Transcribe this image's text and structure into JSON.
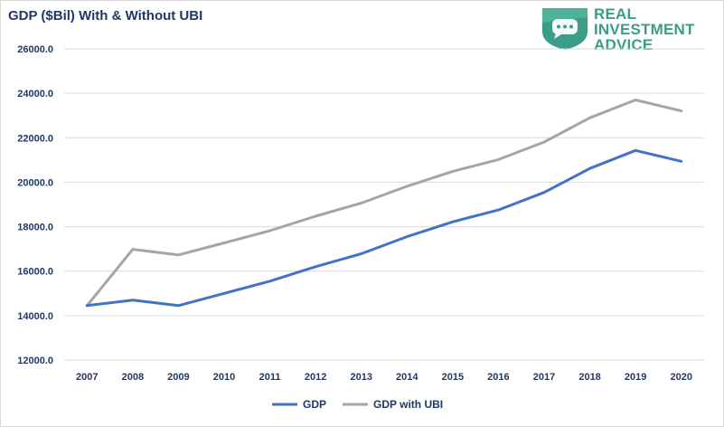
{
  "chart_data": {
    "type": "line",
    "title": "GDP ($Bil) With & Without UBI",
    "x": [
      "2007",
      "2008",
      "2009",
      "2010",
      "2011",
      "2012",
      "2013",
      "2014",
      "2015",
      "2016",
      "2017",
      "2018",
      "2019",
      "2020"
    ],
    "ylim": [
      12000,
      26000
    ],
    "yticks": [
      12000,
      14000,
      16000,
      18000,
      20000,
      22000,
      24000,
      26000
    ],
    "ytick_labels": [
      "12000.0",
      "14000.0",
      "16000.0",
      "18000.0",
      "20000.0",
      "22000.0",
      "24000.0",
      "26000.0"
    ],
    "grid": true,
    "legend_position": "bottom",
    "series": [
      {
        "name": "GDP",
        "color": "#4472c4",
        "values": [
          14450,
          14700,
          14450,
          15000,
          15550,
          16200,
          16780,
          17550,
          18220,
          18750,
          19540,
          20620,
          21430,
          20940
        ]
      },
      {
        "name": "GDP with UBI",
        "color": "#a5a5a5",
        "values": [
          14450,
          16980,
          16730,
          17270,
          17820,
          18470,
          19060,
          19820,
          20490,
          21020,
          21810,
          22900,
          23700,
          23210
        ]
      }
    ]
  },
  "logo": {
    "line1": "REAL",
    "line2": "INVESTMENT",
    "line3": "ADVICE",
    "color": "#3a9d87"
  }
}
